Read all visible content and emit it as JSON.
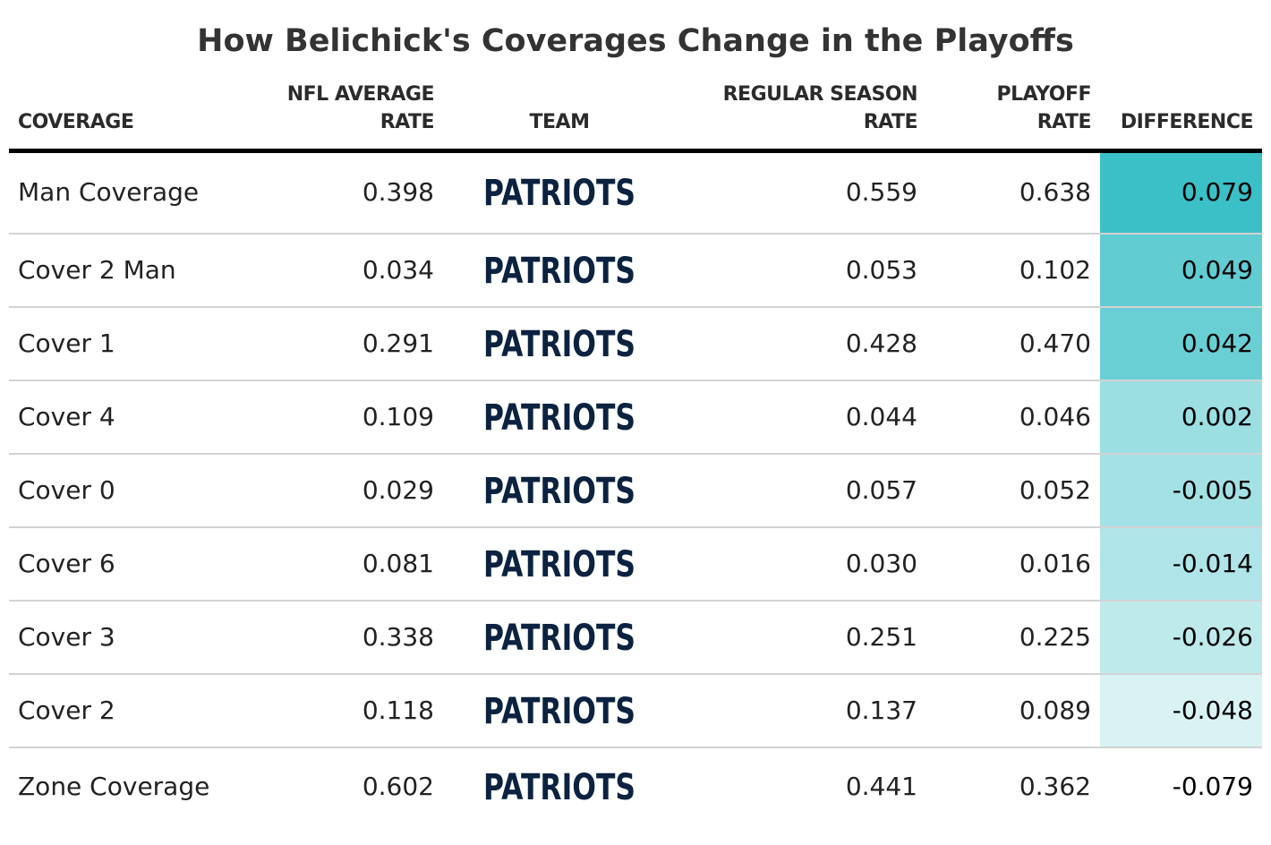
{
  "title": "How Belichick's Coverages Change in the Playoffs",
  "headers": {
    "coverage": "COVERAGE",
    "nfl_avg": [
      "NFL AVERAGE",
      "RATE"
    ],
    "team": "TEAM",
    "regular": [
      "REGULAR SEASON",
      "RATE"
    ],
    "playoff": [
      "PLAYOFF",
      "RATE"
    ],
    "difference": "DIFFERENCE"
  },
  "logo_text": "PATRIOTS",
  "colors": {
    "logo": "#0b2240",
    "diff_max": "#3cc0c7",
    "diff_min": "#ffffff"
  },
  "chart_data": {
    "type": "table",
    "title": "How Belichick's Coverages Change in the Playoffs",
    "columns": [
      "COVERAGE",
      "NFL AVERAGE RATE",
      "TEAM",
      "REGULAR SEASON RATE",
      "PLAYOFF RATE",
      "DIFFERENCE"
    ],
    "rows": [
      {
        "coverage": "Man Coverage",
        "nfl_avg": "0.398",
        "team": "PATRIOTS",
        "regular": "0.559",
        "playoff": "0.638",
        "difference": "0.079"
      },
      {
        "coverage": "Cover 2 Man",
        "nfl_avg": "0.034",
        "team": "PATRIOTS",
        "regular": "0.053",
        "playoff": "0.102",
        "difference": "0.049"
      },
      {
        "coverage": "Cover 1",
        "nfl_avg": "0.291",
        "team": "PATRIOTS",
        "regular": "0.428",
        "playoff": "0.470",
        "difference": "0.042"
      },
      {
        "coverage": "Cover 4",
        "nfl_avg": "0.109",
        "team": "PATRIOTS",
        "regular": "0.044",
        "playoff": "0.046",
        "difference": "0.002"
      },
      {
        "coverage": "Cover 0",
        "nfl_avg": "0.029",
        "team": "PATRIOTS",
        "regular": "0.057",
        "playoff": "0.052",
        "difference": "-0.005"
      },
      {
        "coverage": "Cover 6",
        "nfl_avg": "0.081",
        "team": "PATRIOTS",
        "regular": "0.030",
        "playoff": "0.016",
        "difference": "-0.014"
      },
      {
        "coverage": "Cover 3",
        "nfl_avg": "0.338",
        "team": "PATRIOTS",
        "regular": "0.251",
        "playoff": "0.225",
        "difference": "-0.026"
      },
      {
        "coverage": "Cover 2",
        "nfl_avg": "0.118",
        "team": "PATRIOTS",
        "regular": "0.137",
        "playoff": "0.089",
        "difference": "-0.048"
      },
      {
        "coverage": "Zone Coverage",
        "nfl_avg": "0.602",
        "team": "PATRIOTS",
        "regular": "0.441",
        "playoff": "0.362",
        "difference": "-0.079"
      }
    ]
  }
}
